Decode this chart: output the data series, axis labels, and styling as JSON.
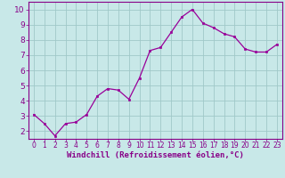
{
  "x": [
    0,
    1,
    2,
    3,
    4,
    5,
    6,
    7,
    8,
    9,
    10,
    11,
    12,
    13,
    14,
    15,
    16,
    17,
    18,
    19,
    20,
    21,
    22,
    23
  ],
  "y": [
    3.1,
    2.5,
    1.7,
    2.5,
    2.6,
    3.1,
    4.3,
    4.8,
    4.7,
    4.1,
    5.5,
    7.3,
    7.5,
    8.5,
    9.5,
    10.0,
    9.1,
    8.8,
    8.4,
    8.2,
    7.4,
    7.2,
    7.2,
    7.7
  ],
  "line_color": "#990099",
  "marker_color": "#990099",
  "bg_color": "#c8e8e8",
  "grid_color": "#a0c8c8",
  "xlabel": "Windchill (Refroidissement éolien,°C)",
  "xlim": [
    -0.5,
    23.5
  ],
  "ylim": [
    1.5,
    10.5
  ],
  "yticks": [
    2,
    3,
    4,
    5,
    6,
    7,
    8,
    9,
    10
  ],
  "xticks": [
    0,
    1,
    2,
    3,
    4,
    5,
    6,
    7,
    8,
    9,
    10,
    11,
    12,
    13,
    14,
    15,
    16,
    17,
    18,
    19,
    20,
    21,
    22,
    23
  ],
  "axis_color": "#880088",
  "tick_color": "#880088",
  "font_size_label": 6.5,
  "font_size_tick_x": 5.5,
  "font_size_tick_y": 6.5
}
